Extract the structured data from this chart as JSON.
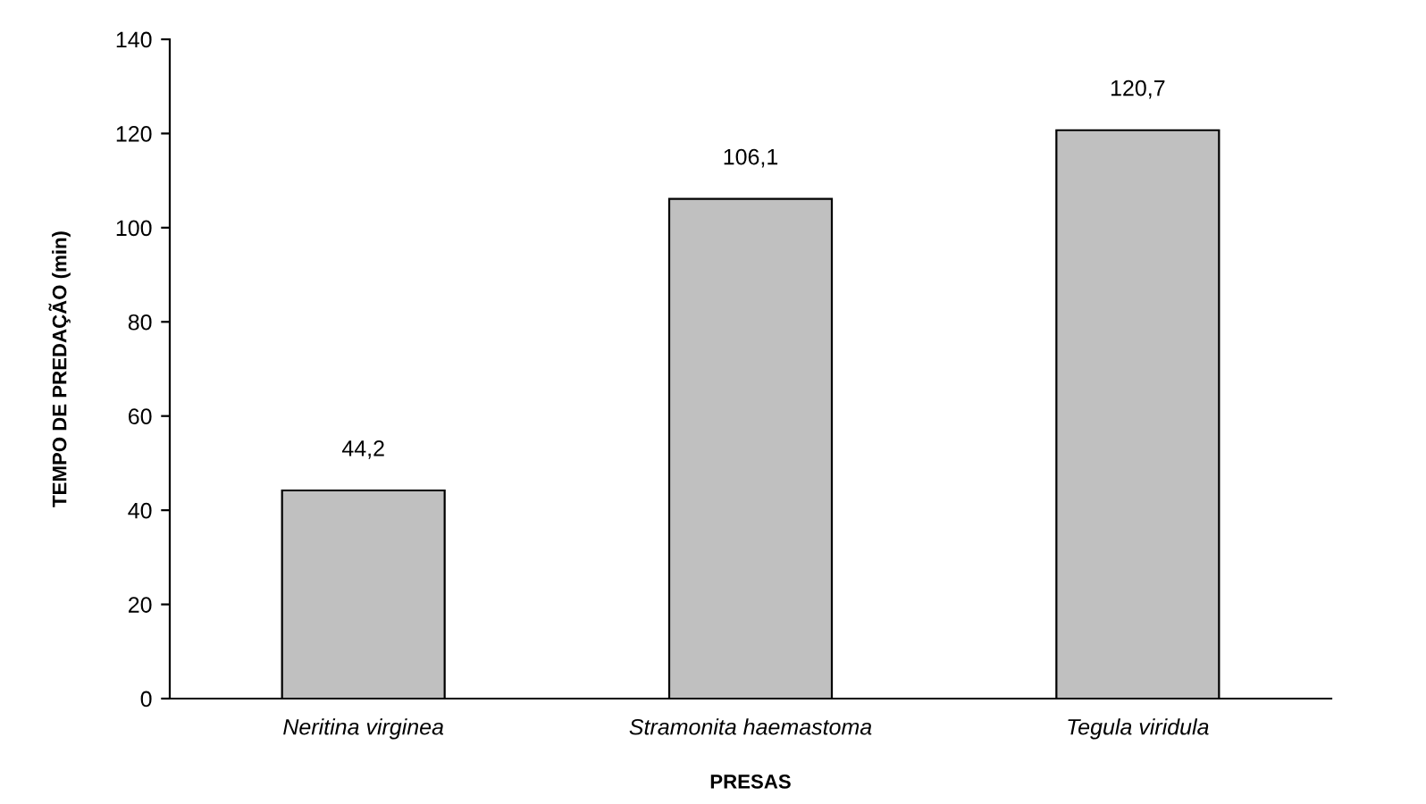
{
  "chart_data": {
    "type": "bar",
    "xlabel": "PRESAS",
    "ylabel": "TEMPO DE PREDAÇÃO (min)",
    "categories": [
      "Neritina virginea",
      "Stramonita haemastoma",
      "Tegula viridula"
    ],
    "values": [
      44.2,
      106.1,
      120.7
    ],
    "value_labels": [
      "44,2",
      "106,1",
      "120,7"
    ],
    "color": "#c0c0c0",
    "ylim": [
      0,
      140
    ],
    "yticks": [
      0,
      20,
      40,
      60,
      80,
      100,
      120,
      140
    ],
    "grid": false,
    "legend": false
  }
}
